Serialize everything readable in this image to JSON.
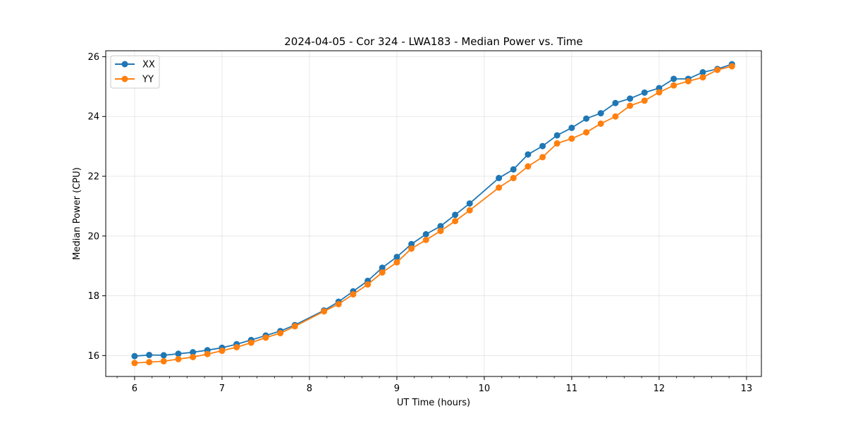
{
  "chart_data": {
    "type": "line",
    "title": "2024-04-05 - Cor 324 - LWA183 - Median Power vs. Time",
    "xlabel": "UT Time (hours)",
    "ylabel": "Median Power (CPU)",
    "xlim": [
      5.67,
      13.17
    ],
    "ylim": [
      15.3,
      26.2
    ],
    "x_ticks": [
      6,
      7,
      8,
      9,
      10,
      11,
      12,
      13
    ],
    "y_ticks": [
      16,
      18,
      20,
      22,
      24,
      26
    ],
    "grid": true,
    "legend_position": "top-left",
    "series": [
      {
        "name": "XX",
        "color": "#1f77b4",
        "x": [
          6.0,
          6.167,
          6.333,
          6.5,
          6.667,
          6.833,
          7.0,
          7.167,
          7.333,
          7.5,
          7.667,
          7.833,
          8.167,
          8.333,
          8.5,
          8.667,
          8.833,
          9.0,
          9.167,
          9.333,
          9.5,
          9.667,
          9.833,
          10.167,
          10.333,
          10.5,
          10.667,
          10.833,
          11.0,
          11.167,
          11.333,
          11.5,
          11.667,
          11.833,
          12.0,
          12.167,
          12.333,
          12.5,
          12.667,
          12.833
        ],
        "values": [
          15.98,
          16.02,
          16.01,
          16.06,
          16.11,
          16.18,
          16.26,
          16.38,
          16.52,
          16.67,
          16.82,
          17.02,
          17.51,
          17.8,
          18.15,
          18.5,
          18.94,
          19.3,
          19.73,
          20.06,
          20.33,
          20.71,
          21.09,
          21.94,
          22.23,
          22.73,
          23.01,
          23.37,
          23.62,
          23.93,
          24.11,
          24.45,
          24.6,
          24.8,
          24.95,
          25.26,
          25.26,
          25.48,
          25.59,
          25.75
        ]
      },
      {
        "name": "YY",
        "color": "#ff7f0e",
        "x": [
          6.0,
          6.167,
          6.333,
          6.5,
          6.667,
          6.833,
          7.0,
          7.167,
          7.333,
          7.5,
          7.667,
          7.833,
          8.167,
          8.333,
          8.5,
          8.667,
          8.833,
          9.0,
          9.167,
          9.333,
          9.5,
          9.667,
          9.833,
          10.167,
          10.333,
          10.5,
          10.667,
          10.833,
          11.0,
          11.167,
          11.333,
          11.5,
          11.667,
          11.833,
          12.0,
          12.167,
          12.333,
          12.5,
          12.667,
          12.833
        ],
        "values": [
          15.75,
          15.78,
          15.81,
          15.88,
          15.95,
          16.05,
          16.16,
          16.28,
          16.43,
          16.6,
          16.75,
          16.98,
          17.48,
          17.72,
          18.05,
          18.38,
          18.78,
          19.12,
          19.58,
          19.87,
          20.17,
          20.5,
          20.86,
          21.62,
          21.94,
          22.33,
          22.64,
          23.1,
          23.26,
          23.47,
          23.76,
          24.0,
          24.36,
          24.53,
          24.81,
          25.04,
          25.18,
          25.31,
          25.56,
          25.68
        ]
      }
    ]
  }
}
